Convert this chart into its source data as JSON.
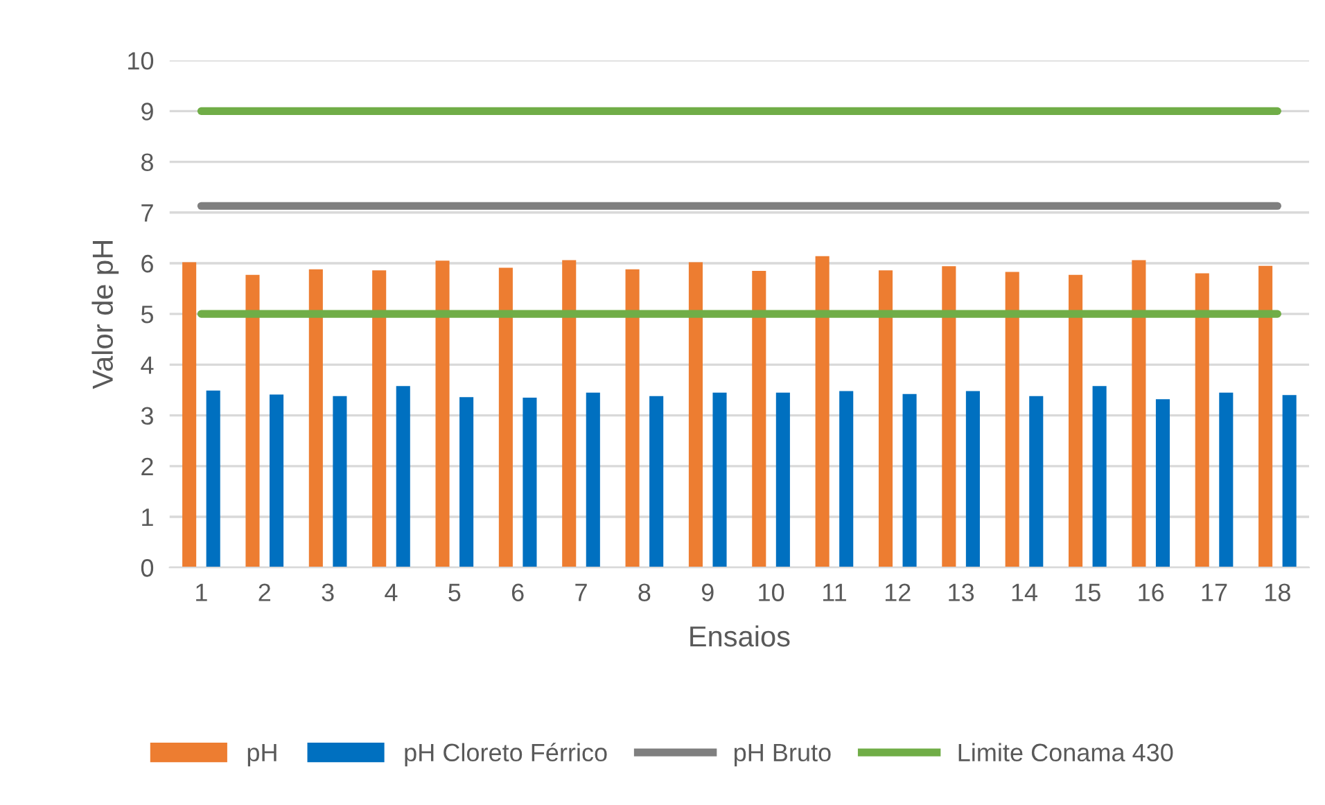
{
  "chart_data": {
    "type": "bar",
    "xlabel": "Ensaios",
    "ylabel": "Valor de pH",
    "categories": [
      "1",
      "2",
      "3",
      "4",
      "5",
      "6",
      "7",
      "8",
      "9",
      "10",
      "11",
      "12",
      "13",
      "14",
      "15",
      "16",
      "17",
      "18"
    ],
    "series": [
      {
        "name": "pH",
        "color": "#ed7d31",
        "values": [
          6.02,
          5.77,
          5.88,
          5.86,
          6.05,
          5.91,
          6.06,
          5.88,
          6.02,
          5.85,
          6.14,
          5.86,
          5.94,
          5.83,
          5.77,
          6.06,
          5.8,
          5.95
        ]
      },
      {
        "name": "pH Cloreto Férrico",
        "color": "#0070c0",
        "values": [
          3.49,
          3.41,
          3.38,
          3.58,
          3.36,
          3.35,
          3.45,
          3.38,
          3.45,
          3.45,
          3.48,
          3.42,
          3.48,
          3.38,
          3.58,
          3.32,
          3.45,
          3.4
        ]
      },
      {
        "name": "pH Bruto",
        "type": "line",
        "color": "#7f7f7f",
        "values": [
          7.13,
          7.13,
          7.13,
          7.13,
          7.13,
          7.13,
          7.13,
          7.13,
          7.13,
          7.13,
          7.13,
          7.13,
          7.13,
          7.13,
          7.13,
          7.13,
          7.13,
          7.13
        ]
      },
      {
        "name": "Limite Conama 430",
        "type": "line",
        "color": "#70ad47",
        "values": [
          9,
          9,
          9,
          9,
          9,
          9,
          9,
          9,
          9,
          9,
          9,
          9,
          9,
          9,
          9,
          9,
          9,
          9
        ]
      },
      {
        "type": "line",
        "color": "#70ad47",
        "values": [
          5,
          5,
          5,
          5,
          5,
          5,
          5,
          5,
          5,
          5,
          5,
          5,
          5,
          5,
          5,
          5,
          5,
          5
        ]
      }
    ],
    "ylim": [
      0,
      10
    ],
    "yticks": [
      0,
      1,
      2,
      3,
      4,
      5,
      6,
      7,
      8,
      9,
      10
    ],
    "grid": "y",
    "legend": "bottom"
  }
}
